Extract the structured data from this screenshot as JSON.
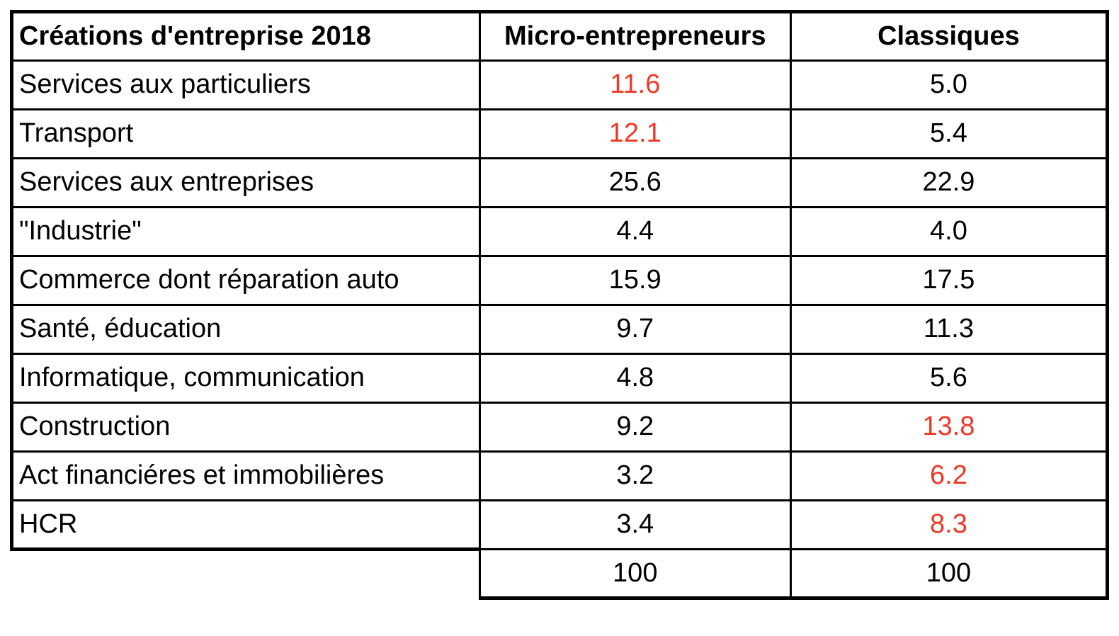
{
  "table": {
    "title": "Créations d'entreprise 2018",
    "columns": [
      {
        "label": "Créations d'entreprise 2018"
      },
      {
        "label": "Micro-entrepreneurs"
      },
      {
        "label": "Classiques"
      }
    ],
    "rows": [
      {
        "label": "Services aux particuliers",
        "micro": {
          "value": "11.6",
          "highlight": true
        },
        "classiques": {
          "value": "5.0",
          "highlight": false
        }
      },
      {
        "label": "Transport",
        "micro": {
          "value": "12.1",
          "highlight": true
        },
        "classiques": {
          "value": "5.4",
          "highlight": false
        }
      },
      {
        "label": "Services aux entreprises",
        "micro": {
          "value": "25.6",
          "highlight": false
        },
        "classiques": {
          "value": "22.9",
          "highlight": false
        }
      },
      {
        "label": "\"Industrie\"",
        "micro": {
          "value": "4.4",
          "highlight": false
        },
        "classiques": {
          "value": "4.0",
          "highlight": false
        }
      },
      {
        "label": "Commerce dont réparation auto",
        "micro": {
          "value": "15.9",
          "highlight": false
        },
        "classiques": {
          "value": "17.5",
          "highlight": false
        }
      },
      {
        "label": "Santé, éducation",
        "micro": {
          "value": "9.7",
          "highlight": false
        },
        "classiques": {
          "value": "11.3",
          "highlight": false
        }
      },
      {
        "label": "Informatique, communication",
        "micro": {
          "value": "4.8",
          "highlight": false
        },
        "classiques": {
          "value": "5.6",
          "highlight": false
        }
      },
      {
        "label": "Construction",
        "micro": {
          "value": "9.2",
          "highlight": false
        },
        "classiques": {
          "value": "13.8",
          "highlight": true
        }
      },
      {
        "label": "Act financiéres et immobilières",
        "micro": {
          "value": "3.2",
          "highlight": false
        },
        "classiques": {
          "value": "6.2",
          "highlight": true
        }
      },
      {
        "label": "HCR",
        "micro": {
          "value": "3.4",
          "highlight": false
        },
        "classiques": {
          "value": "8.3",
          "highlight": true
        }
      }
    ],
    "totals": {
      "micro": "100",
      "classiques": "100"
    }
  },
  "colors": {
    "highlight_red": "#EF3825",
    "text": "#000000",
    "border": "#000000",
    "background": "#FFFFFF"
  },
  "chart_data": {
    "type": "table",
    "title": "Créations d'entreprise 2018",
    "categories": [
      "Services aux particuliers",
      "Transport",
      "Services aux entreprises",
      "\"Industrie\"",
      "Commerce dont réparation auto",
      "Santé, éducation",
      "Informatique, communication",
      "Construction",
      "Act financiéres et immobilières",
      "HCR"
    ],
    "series": [
      {
        "name": "Micro-entrepreneurs",
        "values": [
          11.6,
          12.1,
          25.6,
          4.4,
          15.9,
          9.7,
          4.8,
          9.2,
          3.2,
          3.4
        ],
        "total": 100,
        "highlighted_values": [
          11.6,
          12.1
        ]
      },
      {
        "name": "Classiques",
        "values": [
          5.0,
          5.4,
          22.9,
          4.0,
          17.5,
          11.3,
          5.6,
          13.8,
          6.2,
          8.3
        ],
        "total": 100,
        "highlighted_values": [
          13.8,
          6.2,
          8.3
        ]
      }
    ],
    "units": "percent",
    "notes": "Highlighted values rendered in red"
  }
}
